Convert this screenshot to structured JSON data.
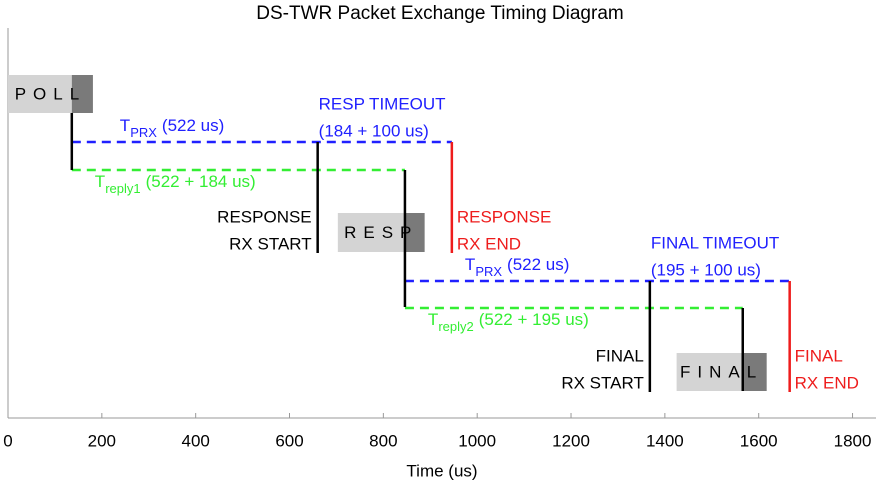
{
  "chart_data": {
    "type": "timing",
    "title": "DS-TWR Packet Exchange Timing Diagram",
    "x_label": "Time (us)",
    "xlim": [
      0,
      1850
    ],
    "xticks": [
      0,
      200,
      400,
      600,
      800,
      1000,
      1200,
      1400,
      1600,
      1800
    ],
    "packets": [
      {
        "label": "POLL",
        "start": 0,
        "marker": 136,
        "end": 181
      },
      {
        "label": "RESP",
        "start": 703,
        "marker": 846,
        "end": 888
      },
      {
        "label": "FINAL",
        "start": 1425,
        "marker": 1566,
        "end": 1617
      }
    ],
    "intervals": [
      {
        "name": "T",
        "subscript": "PRX",
        "detail": "(522 us)",
        "color": "#2020ff",
        "start": 136,
        "end": 946
      },
      {
        "name": "T",
        "subscript": "reply1",
        "detail": "(522 + 184 us)",
        "color": "#33ee33",
        "start": 136,
        "end": 846
      },
      {
        "name": "T",
        "subscript": "PRX",
        "detail": "(522 us)",
        "color": "#2020ff",
        "start": 846,
        "end": 1666
      },
      {
        "name": "T",
        "subscript": "reply2",
        "detail": "(522 + 195 us)",
        "color": "#33ee33",
        "start": 846,
        "end": 1566
      }
    ],
    "events": [
      {
        "lines": [
          "RESPONSE",
          "RX START"
        ],
        "x": 660,
        "color": "#000000",
        "timeout": [
          "RESP TIMEOUT",
          "(184 + 100 us)"
        ],
        "timeout_color": "#2020ff"
      },
      {
        "lines": [
          "RESPONSE",
          "RX END"
        ],
        "x": 946,
        "color": "#ee1c1c"
      },
      {
        "lines": [
          "FINAL",
          "RX START"
        ],
        "x": 1368,
        "color": "#000000",
        "timeout": [
          "FINAL TIMEOUT",
          "(195 + 100 us)"
        ],
        "timeout_color": "#2020ff"
      },
      {
        "lines": [
          "FINAL",
          "RX END"
        ],
        "x": 1666,
        "color": "#ee1c1c"
      }
    ]
  }
}
